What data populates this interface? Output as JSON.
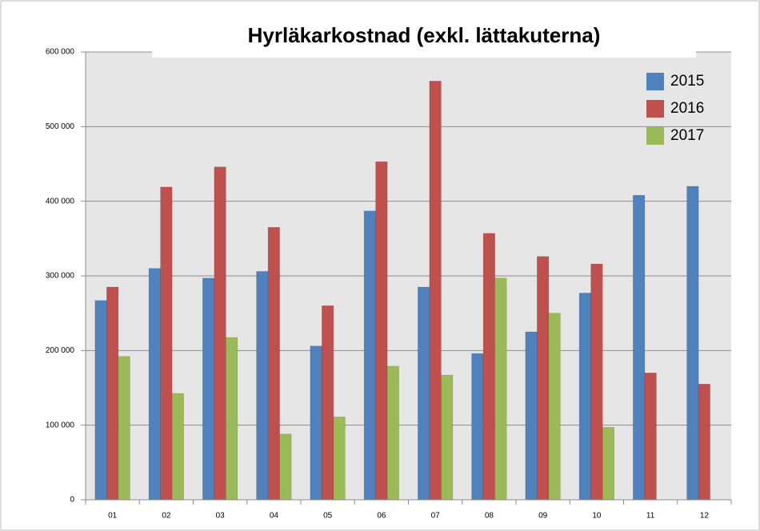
{
  "chart_data": {
    "type": "bar",
    "title": "Hyrläkarkostnad (exkl. lättakuterna)",
    "categories": [
      "01",
      "02",
      "03",
      "04",
      "05",
      "06",
      "07",
      "08",
      "09",
      "10",
      "11",
      "12"
    ],
    "series": [
      {
        "name": "2015",
        "color": "#4f81bd",
        "values": [
          267000,
          310000,
          297000,
          306000,
          206000,
          387000,
          285000,
          196000,
          225000,
          277000,
          408000,
          420000
        ]
      },
      {
        "name": "2016",
        "color": "#c0504d",
        "values": [
          285000,
          419000,
          446000,
          365000,
          260000,
          453000,
          561000,
          357000,
          326000,
          316000,
          170000,
          155000
        ]
      },
      {
        "name": "2017",
        "color": "#9bbb59",
        "values": [
          192000,
          142500,
          217500,
          88000,
          111000,
          179000,
          167000,
          297000,
          250000,
          97000,
          null,
          null
        ]
      }
    ],
    "ylim": [
      0,
      600000
    ],
    "yticks": [
      0,
      {
        "value": 100000,
        "label": "100 000"
      },
      {
        "value": 200000,
        "label": "200 000"
      },
      {
        "value": 300000,
        "label": "300 000"
      },
      {
        "value": 400000,
        "label": "400 000"
      },
      {
        "value": 500000,
        "label": "500 000"
      },
      {
        "value": 600000,
        "label": "600 000"
      }
    ],
    "grid": true,
    "legend": "top-right"
  }
}
